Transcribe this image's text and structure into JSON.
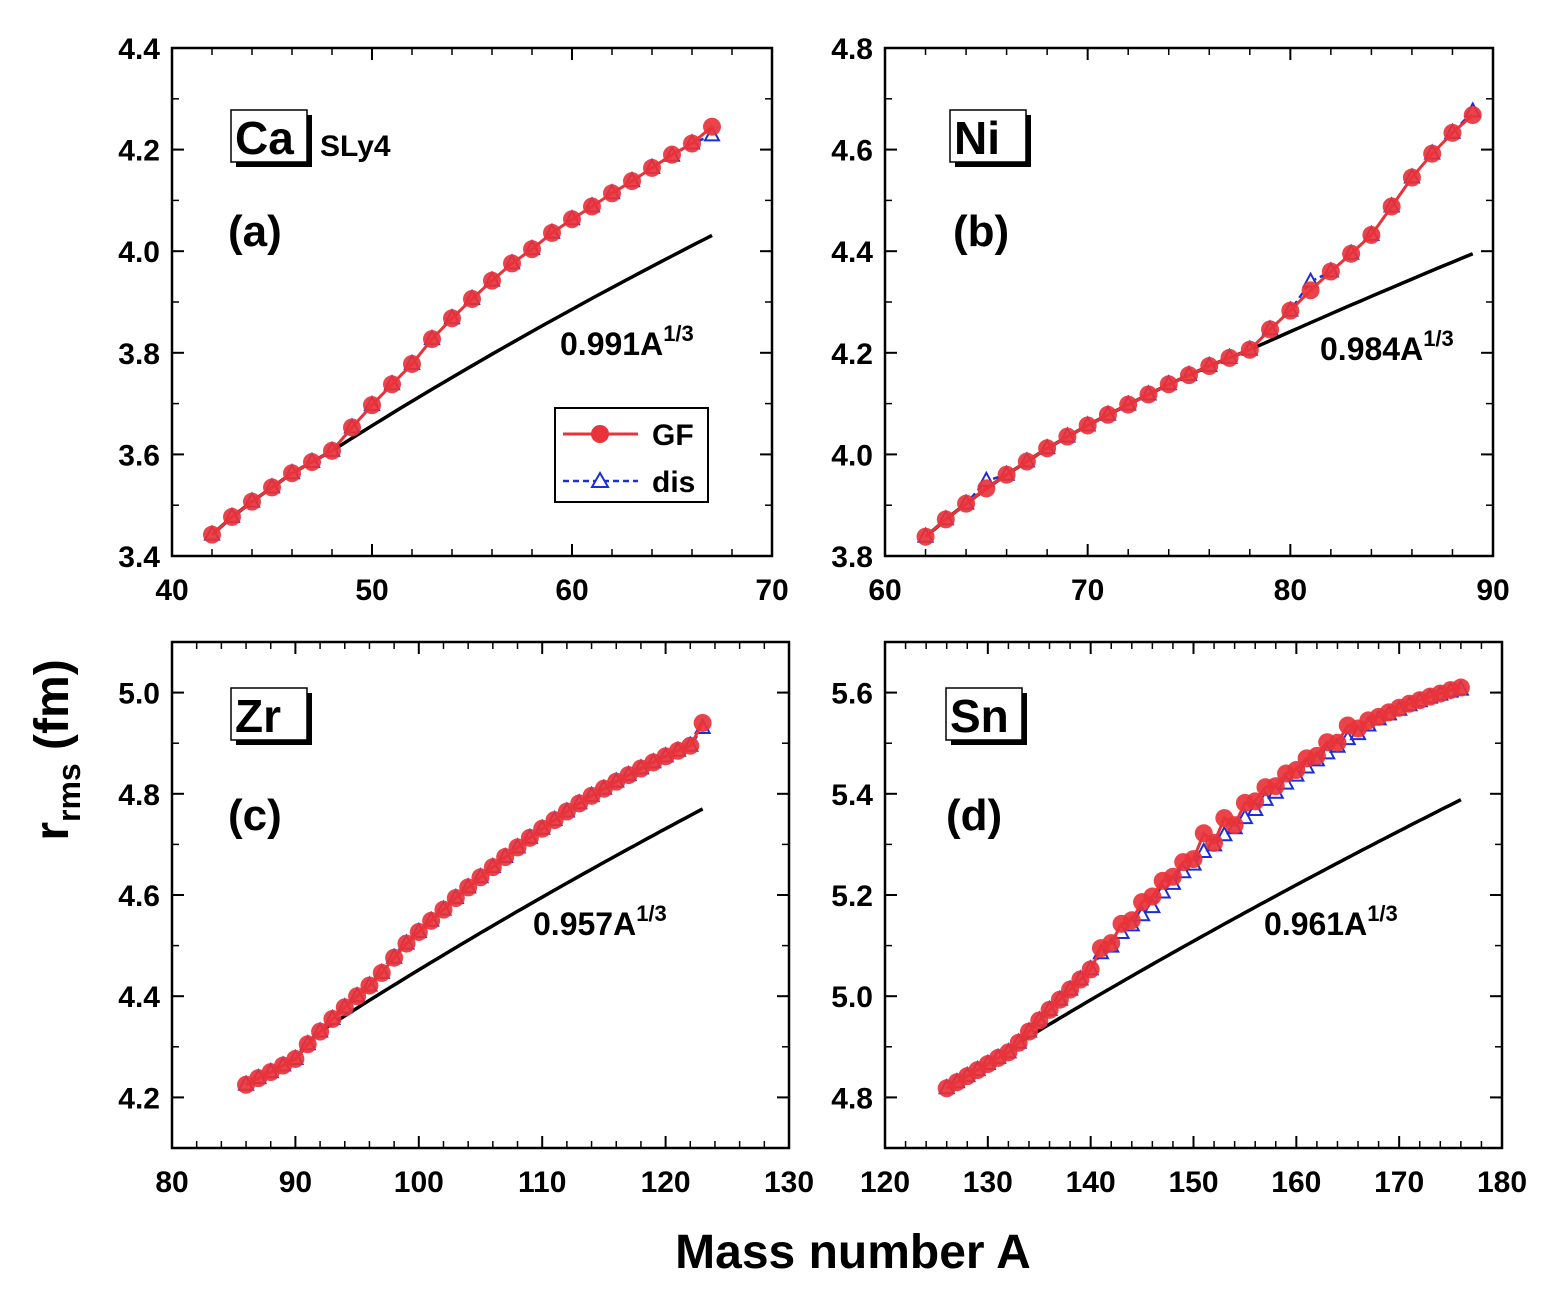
{
  "figure": {
    "ylabel_main": "r",
    "ylabel_sub": "rms",
    "ylabel_unit": " (fm)",
    "xlabel": "Mass number A",
    "model_label": "SLy4",
    "legend": {
      "gf": "GF",
      "dis": "dis"
    },
    "colors": {
      "gf": "#e8333a",
      "dis": "#1b2fd6",
      "fit": "#000000"
    }
  },
  "chart_data": [
    {
      "type": "line",
      "panel": "(a)",
      "element": "Ca",
      "fit_coeff": "0.991A",
      "fit_exp": "1/3",
      "xlim": [
        40,
        70
      ],
      "ylim": [
        3.4,
        4.4
      ],
      "xticks": [
        40,
        50,
        60,
        70
      ],
      "yticks": [
        3.4,
        3.6,
        3.8,
        4.0,
        4.2,
        4.4
      ],
      "ytick_labels": [
        "3.4",
        "3.6",
        "3.8",
        "4.0",
        "4.2",
        "4.4"
      ],
      "x": [
        42,
        43,
        44,
        45,
        46,
        47,
        48,
        49,
        50,
        51,
        52,
        53,
        54,
        55,
        56,
        57,
        58,
        59,
        60,
        61,
        62,
        63,
        64,
        65,
        66,
        67
      ],
      "gf": [
        3.442,
        3.477,
        3.507,
        3.535,
        3.563,
        3.585,
        3.607,
        3.653,
        3.697,
        3.738,
        3.778,
        3.827,
        3.868,
        3.906,
        3.942,
        3.976,
        4.004,
        4.036,
        4.063,
        4.088,
        4.114,
        4.138,
        4.164,
        4.19,
        4.212,
        4.245
      ],
      "dis": [
        3.442,
        3.477,
        3.507,
        3.535,
        3.563,
        3.585,
        3.607,
        3.653,
        3.697,
        3.738,
        3.778,
        3.827,
        3.868,
        3.906,
        3.942,
        3.976,
        4.004,
        4.036,
        4.063,
        4.088,
        4.114,
        4.138,
        4.164,
        4.188,
        4.212,
        4.228
      ],
      "fit_x": [
        42,
        67
      ],
      "fit_a": 0.991,
      "fit_from": 48
    },
    {
      "type": "line",
      "panel": "(b)",
      "element": "Ni",
      "fit_coeff": "0.984A",
      "fit_exp": "1/3",
      "xlim": [
        60,
        90
      ],
      "ylim": [
        3.8,
        4.8
      ],
      "xticks": [
        60,
        70,
        80,
        90
      ],
      "yticks": [
        3.8,
        4.0,
        4.2,
        4.4,
        4.6,
        4.8
      ],
      "ytick_labels": [
        "3.8",
        "4.0",
        "4.2",
        "4.4",
        "4.6",
        "4.8"
      ],
      "x": [
        62,
        63,
        64,
        65,
        66,
        67,
        68,
        69,
        70,
        71,
        72,
        73,
        74,
        75,
        76,
        77,
        78,
        79,
        80,
        81,
        82,
        83,
        84,
        85,
        86,
        87,
        88,
        89
      ],
      "gf": [
        3.838,
        3.872,
        3.903,
        3.933,
        3.96,
        3.986,
        4.012,
        4.035,
        4.057,
        4.078,
        4.098,
        4.118,
        4.138,
        4.156,
        4.174,
        4.19,
        4.206,
        4.246,
        4.283,
        4.323,
        4.36,
        4.395,
        4.432,
        4.488,
        4.545,
        4.592,
        4.633,
        4.668
      ],
      "dis": [
        3.838,
        3.872,
        3.903,
        3.948,
        3.96,
        3.986,
        4.012,
        4.035,
        4.057,
        4.078,
        4.098,
        4.118,
        4.138,
        4.156,
        4.174,
        4.19,
        4.206,
        4.246,
        4.283,
        4.34,
        4.36,
        4.395,
        4.432,
        4.488,
        4.545,
        4.592,
        4.633,
        4.675
      ],
      "fit_x": [
        62,
        89
      ],
      "fit_a": 0.984,
      "fit_from": 78
    },
    {
      "type": "line",
      "panel": "(c)",
      "element": "Zr",
      "fit_coeff": "0.957A",
      "fit_exp": "1/3",
      "xlim": [
        80,
        130
      ],
      "ylim": [
        4.1,
        5.1
      ],
      "xticks": [
        80,
        90,
        100,
        110,
        120,
        130
      ],
      "yticks": [
        4.2,
        4.4,
        4.6,
        4.8,
        5.0
      ],
      "ytick_labels": [
        "4.2",
        "4.4",
        "4.6",
        "4.8",
        "5.0"
      ],
      "x": [
        86,
        87,
        88,
        89,
        90,
        91,
        92,
        93,
        94,
        95,
        96,
        97,
        98,
        99,
        100,
        101,
        102,
        103,
        104,
        105,
        106,
        107,
        108,
        109,
        110,
        111,
        112,
        113,
        114,
        115,
        116,
        117,
        118,
        119,
        120,
        121,
        122,
        123
      ],
      "gf": [
        4.225,
        4.238,
        4.25,
        4.263,
        4.276,
        4.305,
        4.33,
        4.355,
        4.378,
        4.4,
        4.421,
        4.446,
        4.476,
        4.504,
        4.527,
        4.549,
        4.571,
        4.594,
        4.615,
        4.635,
        4.655,
        4.675,
        4.694,
        4.713,
        4.731,
        4.748,
        4.765,
        4.781,
        4.796,
        4.81,
        4.824,
        4.837,
        4.85,
        4.862,
        4.874,
        4.885,
        4.895,
        4.94
      ],
      "dis": [
        4.225,
        4.238,
        4.25,
        4.263,
        4.276,
        4.305,
        4.33,
        4.355,
        4.378,
        4.4,
        4.421,
        4.446,
        4.476,
        4.504,
        4.527,
        4.549,
        4.571,
        4.594,
        4.615,
        4.635,
        4.655,
        4.675,
        4.694,
        4.713,
        4.731,
        4.748,
        4.765,
        4.781,
        4.796,
        4.81,
        4.824,
        4.837,
        4.85,
        4.862,
        4.874,
        4.885,
        4.895,
        4.93
      ],
      "fit_x": [
        86,
        123
      ],
      "fit_a": 0.957,
      "fit_from": 92
    },
    {
      "type": "line",
      "panel": "(d)",
      "element": "Sn",
      "fit_coeff": "0.961A",
      "fit_exp": "1/3",
      "xlim": [
        120,
        180
      ],
      "ylim": [
        4.7,
        5.7
      ],
      "xticks": [
        120,
        130,
        140,
        150,
        160,
        170,
        180
      ],
      "yticks": [
        4.8,
        5.0,
        5.2,
        5.4,
        5.6
      ],
      "ytick_labels": [
        "4.8",
        "5.0",
        "5.2",
        "5.4",
        "5.6"
      ],
      "x": [
        126,
        127,
        128,
        129,
        130,
        131,
        132,
        133,
        134,
        135,
        136,
        137,
        138,
        139,
        140,
        141,
        142,
        143,
        144,
        145,
        146,
        147,
        148,
        149,
        150,
        151,
        152,
        153,
        154,
        155,
        156,
        157,
        158,
        159,
        160,
        161,
        162,
        163,
        164,
        165,
        166,
        167,
        168,
        169,
        170,
        171,
        172,
        173,
        174,
        175,
        176
      ],
      "gf": [
        4.818,
        4.83,
        4.842,
        4.854,
        4.866,
        4.878,
        4.889,
        4.908,
        4.93,
        4.952,
        4.973,
        4.993,
        5.013,
        5.033,
        5.053,
        5.095,
        5.105,
        5.143,
        5.15,
        5.186,
        5.197,
        5.228,
        5.236,
        5.265,
        5.271,
        5.322,
        5.303,
        5.352,
        5.338,
        5.382,
        5.385,
        5.413,
        5.415,
        5.44,
        5.447,
        5.47,
        5.475,
        5.502,
        5.501,
        5.535,
        5.529,
        5.545,
        5.552,
        5.561,
        5.57,
        5.578,
        5.585,
        5.592,
        5.598,
        5.605,
        5.61
      ],
      "dis": [
        4.818,
        4.83,
        4.842,
        4.854,
        4.866,
        4.878,
        4.889,
        4.908,
        4.93,
        4.952,
        4.973,
        4.993,
        5.013,
        5.033,
        5.053,
        5.085,
        5.098,
        5.125,
        5.14,
        5.16,
        5.176,
        5.205,
        5.222,
        5.245,
        5.26,
        5.285,
        5.298,
        5.318,
        5.332,
        5.352,
        5.368,
        5.388,
        5.402,
        5.42,
        5.436,
        5.452,
        5.466,
        5.48,
        5.493,
        5.508,
        5.518,
        5.535,
        5.547,
        5.557,
        5.566,
        5.575,
        5.583,
        5.59,
        5.596,
        5.602,
        5.606
      ],
      "fit_x": [
        126,
        176
      ],
      "fit_a": 0.961,
      "fit_from": 133
    }
  ]
}
